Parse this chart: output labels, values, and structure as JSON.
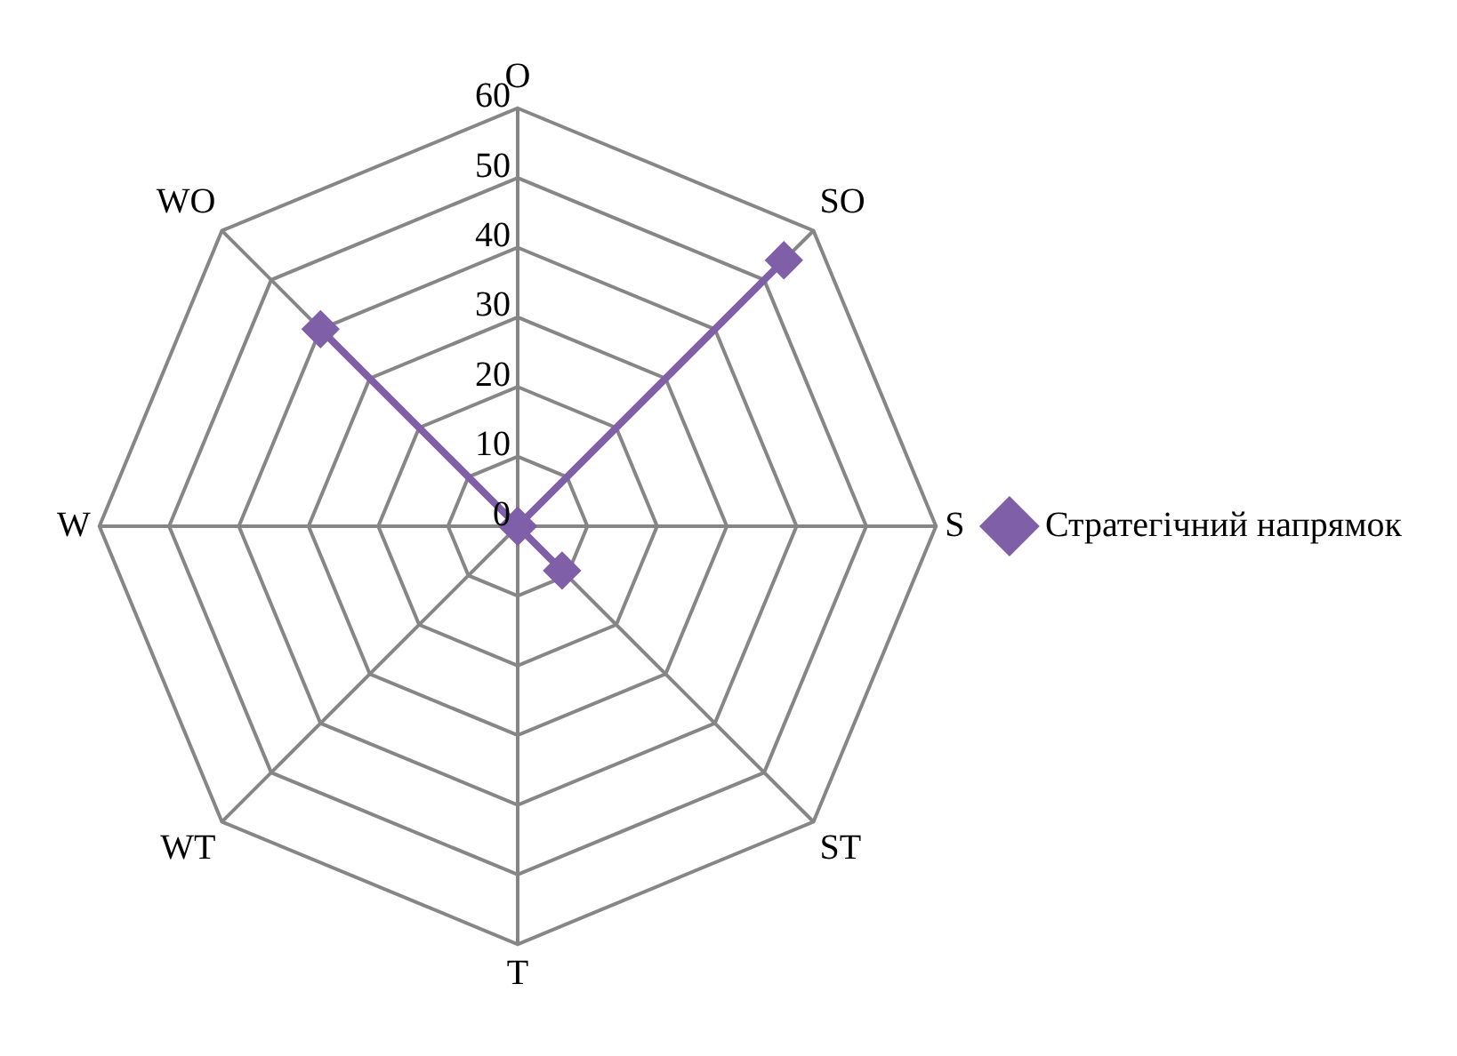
{
  "chart_data": {
    "type": "radar",
    "categories": [
      "O",
      "SO",
      "S",
      "ST",
      "T",
      "WT",
      "W",
      "WO"
    ],
    "series": [
      {
        "name": "Стратегічний напрямок",
        "color": "#7f5fa8",
        "values": [
          0,
          54,
          0,
          9,
          0,
          0,
          0,
          40
        ]
      }
    ],
    "ylim": [
      0,
      60
    ],
    "yticks": [
      0,
      10,
      20,
      30,
      40,
      50,
      60
    ],
    "legend": "right",
    "marker": "diamond",
    "grid": true
  }
}
